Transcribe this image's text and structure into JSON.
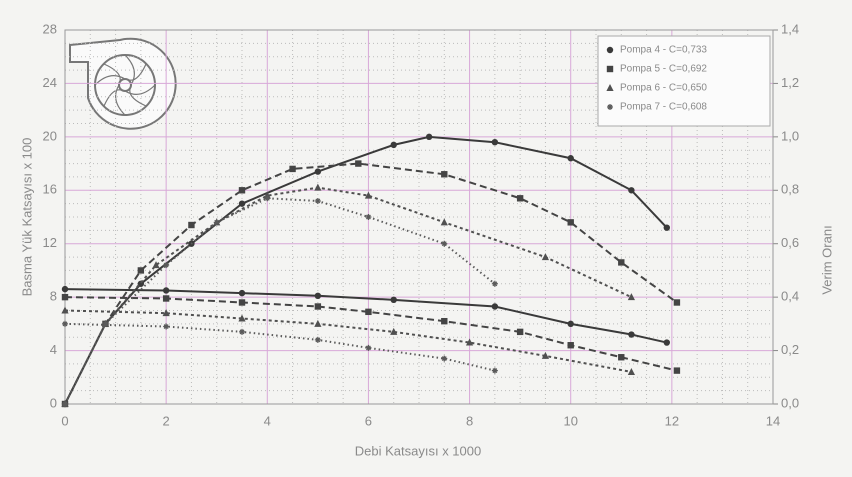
{
  "chart_data": {
    "type": "line",
    "xlabel": "Debi Katsayısı x 1000",
    "ylabel": "Basma Yük Katsayısı x 100",
    "y2label": "Verim Oranı",
    "xlim": [
      0,
      14
    ],
    "xticks": [
      0,
      2,
      4,
      6,
      8,
      10,
      12,
      14
    ],
    "ylim": [
      0,
      28
    ],
    "yticks": [
      0,
      4,
      8,
      12,
      16,
      20,
      24,
      28
    ],
    "y2lim": [
      0,
      1.4
    ],
    "y2ticks": [
      {
        "value": 0,
        "label": "0,0"
      },
      {
        "value": 0.2,
        "label": "0,2"
      },
      {
        "value": 0.4,
        "label": "0,4"
      },
      {
        "value": 0.6,
        "label": "0,6"
      },
      {
        "value": 0.8,
        "label": "0,8"
      },
      {
        "value": 1.0,
        "label": "1,0"
      },
      {
        "value": 1.2,
        "label": "1,2"
      },
      {
        "value": 1.4,
        "label": "1,4"
      }
    ],
    "grid": true,
    "legend": "upper right",
    "series": [
      {
        "name": "Pompa 4 - C=0,733",
        "marker": "circle",
        "color": "#3a3a3a",
        "dash": "none",
        "x": [
          0,
          2,
          3.5,
          5,
          6.5,
          8.5,
          10,
          11.2,
          11.9
        ],
        "values": [
          8.6,
          8.5,
          8.3,
          8.1,
          7.8,
          7.3,
          6.0,
          5.2,
          4.6
        ],
        "efficiency_x": [
          0,
          0.8,
          1.5,
          2.5,
          3.5,
          5,
          6.5,
          7.2,
          8.5,
          10,
          11.2,
          11.9
        ],
        "efficiency": [
          0,
          0.3,
          0.45,
          0.6,
          0.75,
          0.87,
          0.97,
          1.0,
          0.98,
          0.92,
          0.8,
          0.66
        ]
      },
      {
        "name": "Pompa 5 - C=0,692",
        "marker": "square",
        "color": "#444444",
        "dash": "7,4",
        "x": [
          0,
          2,
          3.5,
          5,
          6,
          7.5,
          9,
          10,
          11,
          12.1
        ],
        "values": [
          8.0,
          7.9,
          7.6,
          7.3,
          6.9,
          6.2,
          5.4,
          4.4,
          3.5,
          2.5
        ],
        "efficiency_x": [
          0,
          0.8,
          1.5,
          2.5,
          3.5,
          4.5,
          5.8,
          7.5,
          9,
          10,
          11,
          12.1
        ],
        "efficiency": [
          0,
          0.3,
          0.5,
          0.67,
          0.8,
          0.88,
          0.9,
          0.86,
          0.77,
          0.68,
          0.53,
          0.38
        ]
      },
      {
        "name": "Pompa 6 - C=0,650",
        "marker": "triangle",
        "color": "#505050",
        "dash": "3,3",
        "x": [
          0,
          2,
          3.5,
          5,
          6.5,
          8,
          9.5,
          11.2
        ],
        "values": [
          7.0,
          6.8,
          6.4,
          6.0,
          5.4,
          4.6,
          3.6,
          2.4
        ],
        "efficiency_x": [
          0,
          0.8,
          1.8,
          3,
          4,
          5,
          6,
          7.5,
          9.5,
          11.2
        ],
        "efficiency": [
          0,
          0.3,
          0.52,
          0.68,
          0.78,
          0.81,
          0.78,
          0.68,
          0.55,
          0.4
        ]
      },
      {
        "name": "Pompa 7 - C=0,608",
        "marker": "star",
        "color": "#5a5a5a",
        "dash": "1.5,3",
        "x": [
          0,
          2,
          3.5,
          5,
          6,
          7.5,
          8.5
        ],
        "values": [
          6.0,
          5.8,
          5.4,
          4.8,
          4.2,
          3.4,
          2.5
        ],
        "efficiency_x": [
          0,
          0.8,
          2,
          3,
          4,
          5,
          6,
          7.5,
          8.5
        ],
        "efficiency": [
          0,
          0.3,
          0.52,
          0.68,
          0.77,
          0.76,
          0.7,
          0.6,
          0.45
        ]
      }
    ]
  }
}
